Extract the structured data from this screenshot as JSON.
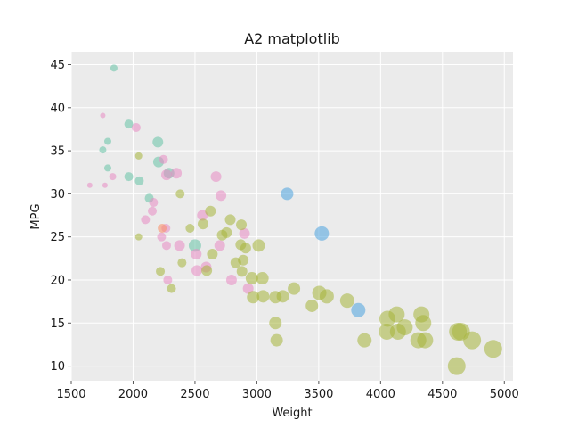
{
  "chart_data": {
    "type": "scatter",
    "title": "A2 matplotlib",
    "xlabel": "Weight",
    "ylabel": "MPG",
    "xlim": [
      1500,
      5070
    ],
    "ylim": [
      8.3,
      46.5
    ],
    "xticks": [
      1500,
      2000,
      2500,
      3000,
      3500,
      4000,
      4500,
      5000
    ],
    "yticks": [
      10,
      15,
      20,
      25,
      30,
      35,
      40,
      45
    ],
    "grid": true,
    "marker_alpha": 0.55,
    "colors": {
      "background": "#ebebeb",
      "grid": "#ffffff",
      "teal": "#66c2a5",
      "pink": "#e78ac3",
      "olive": "#a6b43a",
      "blue": "#4aa3df",
      "orange": "#fc8d62"
    },
    "series": [
      {
        "color": "teal",
        "points": [
          [
            1845,
            44.6,
            4
          ],
          [
            1965,
            38.1,
            5
          ],
          [
            1795,
            36.1,
            4
          ],
          [
            2200,
            36.0,
            6
          ],
          [
            1755,
            35.1,
            4
          ],
          [
            1795,
            33.0,
            4
          ],
          [
            2205,
            33.7,
            6
          ],
          [
            2290,
            32.4,
            6
          ],
          [
            1965,
            32.0,
            5
          ],
          [
            2050,
            31.5,
            5
          ],
          [
            2130,
            29.5,
            5
          ],
          [
            2500,
            24.0,
            7
          ]
        ]
      },
      {
        "color": "pink",
        "points": [
          [
            1755,
            39.1,
            3
          ],
          [
            2025,
            37.7,
            5
          ],
          [
            1650,
            31.0,
            3
          ],
          [
            1773,
            31.0,
            3
          ],
          [
            1835,
            32.0,
            4
          ],
          [
            2245,
            34.0,
            5
          ],
          [
            2270,
            32.2,
            6
          ],
          [
            2350,
            32.4,
            6
          ],
          [
            2670,
            32.0,
            6
          ],
          [
            2165,
            29.0,
            5
          ],
          [
            2155,
            28.0,
            5
          ],
          [
            2710,
            29.8,
            6
          ],
          [
            2100,
            27.0,
            5
          ],
          [
            2230,
            25.0,
            5
          ],
          [
            2265,
            26.0,
            5
          ],
          [
            2560,
            27.5,
            6
          ],
          [
            2270,
            24.0,
            5
          ],
          [
            2375,
            24.0,
            6
          ],
          [
            2700,
            24.0,
            6
          ],
          [
            2900,
            25.4,
            6
          ],
          [
            2510,
            23.0,
            6
          ],
          [
            2280,
            20.0,
            5
          ],
          [
            2515,
            21.1,
            6
          ],
          [
            2590,
            21.5,
            6
          ],
          [
            2795,
            20.0,
            6
          ],
          [
            2930,
            19.0,
            6
          ]
        ]
      },
      {
        "color": "orange",
        "points": [
          [
            2235,
            26.0,
            5
          ]
        ]
      },
      {
        "color": "olive",
        "points": [
          [
            2045,
            34.4,
            4
          ],
          [
            2045,
            25.0,
            4
          ],
          [
            2380,
            30.0,
            5
          ],
          [
            2625,
            28.0,
            6
          ],
          [
            2785,
            27.0,
            6
          ],
          [
            2875,
            26.4,
            6
          ],
          [
            2460,
            26.0,
            5
          ],
          [
            2720,
            25.2,
            6
          ],
          [
            2565,
            26.5,
            6
          ],
          [
            2755,
            25.5,
            6
          ],
          [
            2870,
            24.1,
            6
          ],
          [
            2910,
            23.7,
            6
          ],
          [
            3015,
            24.0,
            7
          ],
          [
            2640,
            23.0,
            6
          ],
          [
            2830,
            22.0,
            6
          ],
          [
            2395,
            22.0,
            5
          ],
          [
            2890,
            22.3,
            6
          ],
          [
            2220,
            21.0,
            5
          ],
          [
            2595,
            21.1,
            6
          ],
          [
            2880,
            21.0,
            6
          ],
          [
            2960,
            20.2,
            7
          ],
          [
            3045,
            20.2,
            7
          ],
          [
            2310,
            19.0,
            5
          ],
          [
            2970,
            18.0,
            7
          ],
          [
            3050,
            18.1,
            7
          ],
          [
            3150,
            18.0,
            7
          ],
          [
            3210,
            18.1,
            7
          ],
          [
            3300,
            19.0,
            7
          ],
          [
            3505,
            18.5,
            8
          ],
          [
            3565,
            18.1,
            8
          ],
          [
            3445,
            17.0,
            7
          ],
          [
            3730,
            17.6,
            8
          ],
          [
            3150,
            15.0,
            7
          ],
          [
            3160,
            13.0,
            7
          ],
          [
            3870,
            13.0,
            8
          ],
          [
            4055,
            15.5,
            9
          ],
          [
            4130,
            16.0,
            9
          ],
          [
            4050,
            14.0,
            9
          ],
          [
            4140,
            14.0,
            9
          ],
          [
            4195,
            14.5,
            9
          ],
          [
            4330,
            16.0,
            9
          ],
          [
            4345,
            15.0,
            9
          ],
          [
            4305,
            13.0,
            9
          ],
          [
            4360,
            13.0,
            9
          ],
          [
            4625,
            14.0,
            10
          ],
          [
            4650,
            14.0,
            10
          ],
          [
            4740,
            13.0,
            10
          ],
          [
            4615,
            10.0,
            10
          ],
          [
            4910,
            12.0,
            10
          ]
        ]
      },
      {
        "color": "blue",
        "points": [
          [
            3245,
            30.0,
            7
          ],
          [
            3525,
            25.4,
            8
          ],
          [
            3820,
            16.5,
            8
          ]
        ]
      }
    ]
  }
}
